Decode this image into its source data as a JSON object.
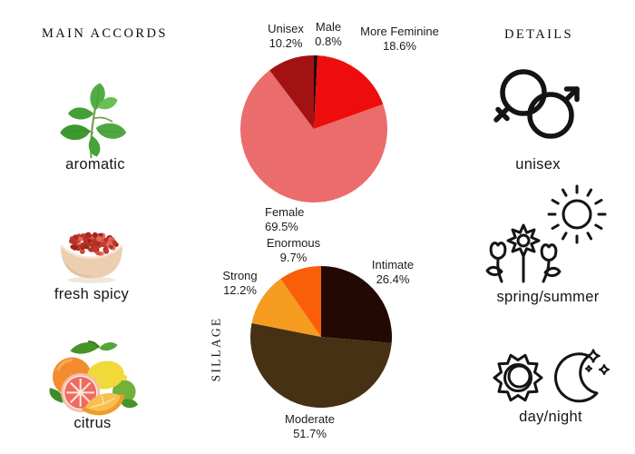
{
  "left_panel": {
    "title": "MAIN ACCORDS",
    "accords": [
      {
        "label": "aromatic",
        "icon": "mint-leaves"
      },
      {
        "label": "fresh spicy",
        "icon": "pink-peppercorns-bowl"
      },
      {
        "label": "citrus",
        "icon": "citrus-fruits"
      }
    ]
  },
  "right_panel": {
    "title": "DETAILS",
    "details": [
      {
        "label": "unisex",
        "icon": "female-male-symbols"
      },
      {
        "label": "spring/summer",
        "icon": "flowers-and-sun"
      },
      {
        "label": "day/night",
        "icon": "sun-and-moon"
      }
    ]
  },
  "chart_data": [
    {
      "type": "pie",
      "name": "gender-split",
      "categories": [
        "Male",
        "More Feminine",
        "Female",
        "Unisex"
      ],
      "values": [
        0.8,
        18.6,
        69.5,
        10.2
      ],
      "value_labels": [
        "0.8%",
        "18.6%",
        "69.5%",
        "10.2%"
      ],
      "colors": [
        "#220b0b",
        "#ee0d0d",
        "#ea6c6c",
        "#a31212"
      ],
      "start_angle_deg": 0,
      "direction": "clockwise",
      "labels_position": "outside",
      "legend": "none"
    },
    {
      "type": "pie",
      "name": "sillage",
      "axis_title": "SILLAGE",
      "categories": [
        "Intimate",
        "Moderate",
        "Strong",
        "Enormous"
      ],
      "values": [
        26.4,
        51.7,
        12.2,
        9.7
      ],
      "value_labels": [
        "26.4%",
        "51.7%",
        "12.2%",
        "9.7%"
      ],
      "colors": [
        "#220903",
        "#463114",
        "#f59c20",
        "#fb5e08"
      ],
      "start_angle_deg": 0,
      "direction": "clockwise",
      "labels_position": "outside",
      "legend": "none"
    }
  ]
}
